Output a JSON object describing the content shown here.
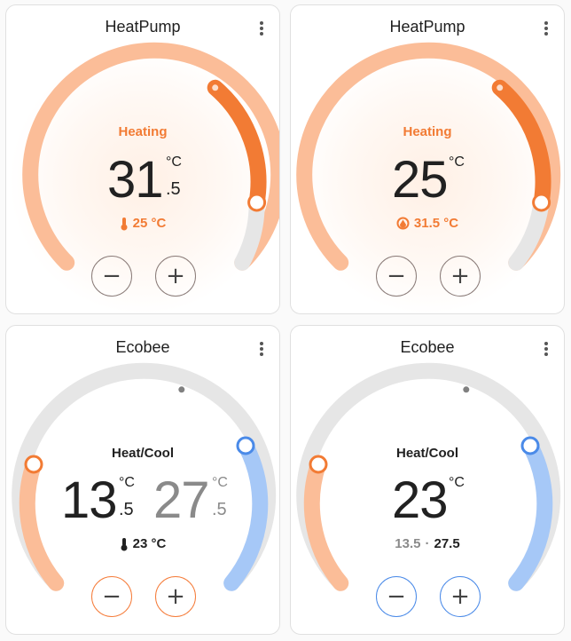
{
  "cards": [
    {
      "title": "HeatPump",
      "mode": "Heating",
      "target_whole": "31",
      "target_decimal": ".5",
      "unit": "°C",
      "current": "25 °C",
      "current_icon": "thermometer-icon",
      "accent": "#f27b34",
      "track_color": "#fbbd98"
    },
    {
      "title": "HeatPump",
      "mode": "Heating",
      "target_whole": "25",
      "unit": "°C",
      "current": "31.5 °C",
      "current_icon": "humidity-icon",
      "accent": "#f27b34",
      "track_color": "#fbbd98"
    },
    {
      "title": "Ecobee",
      "mode": "Heat/Cool",
      "low_whole": "13",
      "low_decimal": ".5",
      "high_whole": "27",
      "high_decimal": ".5",
      "unit": "°C",
      "current": "23 °C",
      "current_icon": "thermometer-icon",
      "heat_color": "#fbbd98",
      "cool_color": "#a6c8f7"
    },
    {
      "title": "Ecobee",
      "mode": "Heat/Cool",
      "target_whole": "23",
      "unit": "°C",
      "range_low": "13.5",
      "range_sep": "·",
      "range_high": "27.5",
      "heat_color": "#fbbd98",
      "cool_color": "#a6c8f7"
    }
  ],
  "controls": {
    "decrease": "−",
    "increase": "+"
  }
}
